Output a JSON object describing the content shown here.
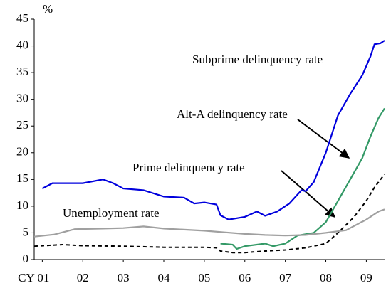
{
  "chart_data": {
    "type": "line",
    "y_label": "%",
    "xlim": [
      -0.2,
      8.45
    ],
    "xticks": [
      {
        "value": 0,
        "label": "CY 01"
      },
      {
        "value": 1,
        "label": "02"
      },
      {
        "value": 2,
        "label": "03"
      },
      {
        "value": 3,
        "label": "04"
      },
      {
        "value": 4,
        "label": "05"
      },
      {
        "value": 5,
        "label": "06"
      },
      {
        "value": 6,
        "label": "07"
      },
      {
        "value": 7,
        "label": "08"
      },
      {
        "value": 8,
        "label": "09"
      }
    ],
    "ylim": [
      0,
      45
    ],
    "yticks": [
      0,
      5,
      10,
      15,
      20,
      25,
      30,
      35,
      40,
      45
    ],
    "annotations": [
      "Subprime delinquency rate",
      "Alt-A delinquency rate",
      "Prime delinquency rate",
      "Unemployment rate"
    ],
    "series": [
      {
        "color": "#0000dd",
        "dash": false,
        "x": [
          0,
          0.25,
          0.5,
          1,
          1.5,
          1.75,
          2,
          2.5,
          3,
          3.5,
          3.75,
          4,
          4.3,
          4.4,
          4.6,
          5,
          5.3,
          5.5,
          5.8,
          6.1,
          6.4,
          6.5,
          6.7,
          7,
          7.3,
          7.6,
          7.9,
          8.1,
          8.2,
          8.35,
          8.45
        ],
        "values": [
          13.3,
          14.3,
          14.3,
          14.3,
          15,
          14.3,
          13.3,
          13,
          11.8,
          11.6,
          10.5,
          10.7,
          10.3,
          8.3,
          7.5,
          8,
          9,
          8.2,
          9,
          10.5,
          13,
          12.8,
          14.5,
          20,
          27,
          31,
          34.5,
          38,
          40.3,
          40.5,
          41
        ]
      },
      {
        "color": "#339966",
        "dash": false,
        "x": [
          4.4,
          4.7,
          4.8,
          5,
          5.5,
          5.7,
          6,
          6.3,
          6.7,
          7,
          7.3,
          7.6,
          7.9,
          8.1,
          8.3,
          8.45
        ],
        "values": [
          3,
          2.8,
          2,
          2.5,
          3,
          2.5,
          3,
          4.5,
          5,
          7,
          11,
          15,
          19,
          23,
          26.5,
          28.3
        ]
      },
      {
        "color": "#000000",
        "dash": true,
        "x": [
          -0.2,
          0.5,
          1,
          2,
          3,
          4,
          4.3,
          4.4,
          4.7,
          5,
          5.5,
          6,
          6.5,
          7,
          7.3,
          7.7,
          8,
          8.2,
          8.45
        ],
        "values": [
          2.5,
          2.8,
          2.6,
          2.5,
          2.3,
          2.3,
          2.2,
          1.6,
          1.3,
          1.3,
          1.6,
          1.8,
          2.2,
          3,
          5,
          8,
          11,
          13.5,
          16
        ]
      },
      {
        "color": "#a0a0a0",
        "dash": false,
        "x": [
          -0.2,
          0.3,
          0.8,
          1.5,
          2,
          2.5,
          3,
          3.5,
          4,
          4.5,
          5,
          5.5,
          6,
          6.5,
          7,
          7.5,
          8,
          8.3,
          8.45
        ],
        "values": [
          4.3,
          4.7,
          5.7,
          5.8,
          5.9,
          6.2,
          5.8,
          5.6,
          5.4,
          5.1,
          4.8,
          4.6,
          4.5,
          4.6,
          5,
          5.5,
          7.5,
          9,
          9.4
        ]
      }
    ]
  }
}
